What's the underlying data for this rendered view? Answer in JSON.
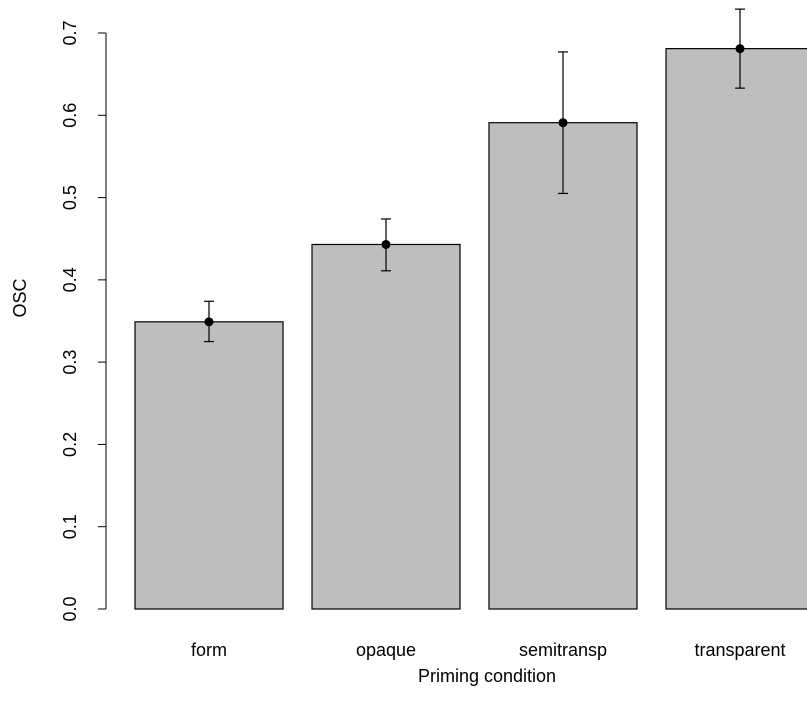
{
  "chart_data": {
    "type": "bar",
    "categories": [
      "form",
      "opaque",
      "semitransp",
      "transparent"
    ],
    "values": [
      0.349,
      0.443,
      0.591,
      0.681
    ],
    "error_low": [
      0.325,
      0.411,
      0.505,
      0.633
    ],
    "error_high": [
      0.374,
      0.474,
      0.677,
      0.729
    ],
    "xlabel": "Priming condition",
    "ylabel": "OSC",
    "ylim": [
      0,
      0.7
    ],
    "yticks": [
      0.0,
      0.1,
      0.2,
      0.3,
      0.4,
      0.5,
      0.6,
      0.7
    ],
    "ytick_labels": [
      "0.0",
      "0.1",
      "0.2",
      "0.3",
      "0.4",
      "0.5",
      "0.6",
      "0.7"
    ],
    "grid": false,
    "colors": {
      "bar_fill": "#bebebe",
      "bar_stroke": "#000000",
      "point": "#000000"
    }
  }
}
